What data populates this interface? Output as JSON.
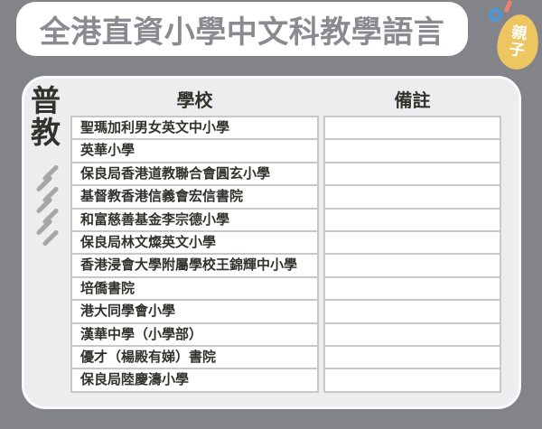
{
  "header": {
    "title": "全港直資小學中文科教學語言"
  },
  "logo": {
    "line1": "親",
    "line2": "子"
  },
  "panel": {
    "side_label": "普教"
  },
  "chart_data": {
    "type": "table",
    "title": "全港直資小學中文科教學語言",
    "row_group_label": "普教",
    "columns": [
      "學校",
      "備註"
    ],
    "rows": [
      {
        "school": "聖瑪加利男女英文中小學",
        "remark": ""
      },
      {
        "school": "英華小學",
        "remark": ""
      },
      {
        "school": "保良局香港道教聯合會圓玄小學",
        "remark": ""
      },
      {
        "school": "基督教香港信義會宏信書院",
        "remark": ""
      },
      {
        "school": "和富慈善基金李宗德小學",
        "remark": ""
      },
      {
        "school": "保良局林文燦英文小學",
        "remark": ""
      },
      {
        "school": "香港浸會大學附屬學校王錦輝中小學",
        "remark": ""
      },
      {
        "school": "培僑書院",
        "remark": ""
      },
      {
        "school": "港大同學會小學",
        "remark": ""
      },
      {
        "school": "漢華中學（小學部）",
        "remark": ""
      },
      {
        "school": "優才（楊殿有娣）書院",
        "remark": ""
      },
      {
        "school": "保良局陸慶濤小學",
        "remark": ""
      }
    ]
  },
  "colors": {
    "background": "#83838a",
    "card": "#ededef",
    "cell_border": "#c8c8cb",
    "title_text": "#8a8a91",
    "dark_text": "#32322c",
    "accent_yellow": "#eec661",
    "accent_blue": "#4e96d6",
    "accent_pink": "#ec8176",
    "hatch_gray": "#a6a6a6"
  }
}
